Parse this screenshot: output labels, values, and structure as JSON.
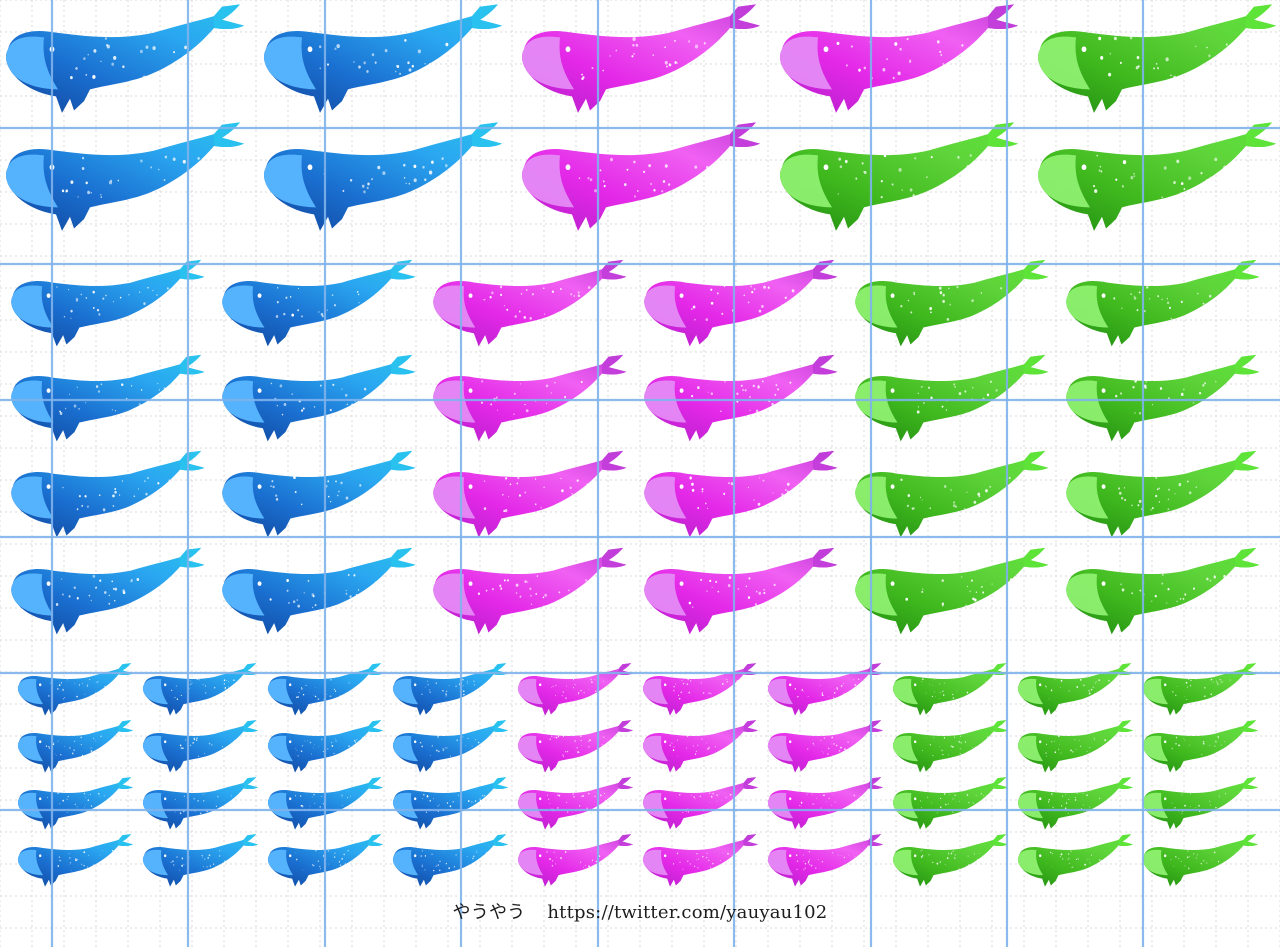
{
  "credit": {
    "author": "やうやう",
    "url": "https://twitter.com/yauyau102"
  },
  "palette": {
    "blue": {
      "body": "#1a6fd0",
      "dark": "#10449a",
      "light": "#2aa6f0",
      "belly": "#58b6ff",
      "tail": "#29c3ee"
    },
    "magenta": {
      "body": "#e428e8",
      "dark": "#b01ec8",
      "light": "#f060f2",
      "belly": "#e58af6",
      "tail": "#c03cd8"
    },
    "green": {
      "body": "#3fb81e",
      "dark": "#1f8a10",
      "light": "#5ed43a",
      "belly": "#8ef070",
      "tail": "#5ee43a"
    }
  },
  "grid": {
    "major_color": "#7fb3ec",
    "minor_color": "#d9d9d9"
  },
  "whale_rows": [
    {
      "size": "large",
      "colors": [
        "blue",
        "blue",
        "magenta",
        "magenta",
        "green"
      ]
    },
    {
      "size": "large",
      "colors": [
        "blue",
        "blue",
        "magenta",
        "green",
        "green"
      ]
    },
    {
      "size": "medium",
      "colors": [
        "blue",
        "blue",
        "magenta",
        "magenta",
        "green",
        "green"
      ]
    },
    {
      "size": "medium",
      "colors": [
        "blue",
        "blue",
        "magenta",
        "magenta",
        "green",
        "green"
      ]
    },
    {
      "size": "medium",
      "colors": [
        "blue",
        "blue",
        "magenta",
        "magenta",
        "green",
        "green"
      ]
    },
    {
      "size": "medium",
      "colors": [
        "blue",
        "blue",
        "magenta",
        "magenta",
        "green",
        "green"
      ]
    },
    {
      "size": "small",
      "colors": [
        "blue",
        "blue",
        "blue",
        "blue",
        "magenta",
        "magenta",
        "magenta",
        "green",
        "green",
        "green"
      ]
    },
    {
      "size": "small",
      "colors": [
        "blue",
        "blue",
        "blue",
        "blue",
        "magenta",
        "magenta",
        "magenta",
        "green",
        "green",
        "green"
      ]
    },
    {
      "size": "small",
      "colors": [
        "blue",
        "blue",
        "blue",
        "blue",
        "magenta",
        "magenta",
        "magenta",
        "green",
        "green",
        "green"
      ]
    },
    {
      "size": "small",
      "colors": [
        "blue",
        "blue",
        "blue",
        "blue",
        "magenta",
        "magenta",
        "magenta",
        "green",
        "green",
        "green"
      ]
    }
  ]
}
